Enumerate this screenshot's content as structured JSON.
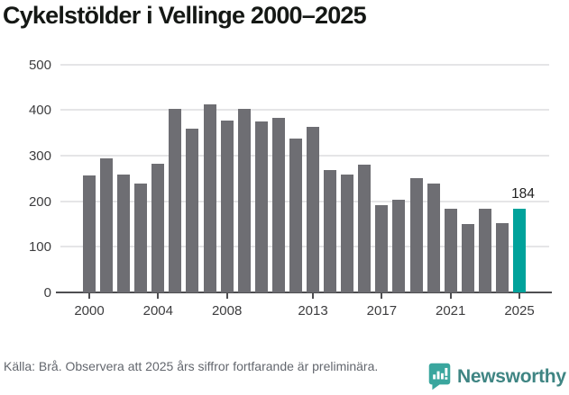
{
  "title": "Cykelstölder i Vellinge 2000–2025",
  "chart_data": {
    "type": "bar",
    "x": [
      2000,
      2001,
      2002,
      2003,
      2004,
      2005,
      2006,
      2007,
      2008,
      2009,
      2010,
      2011,
      2012,
      2013,
      2014,
      2015,
      2016,
      2017,
      2018,
      2019,
      2020,
      2021,
      2022,
      2023,
      2024,
      2025
    ],
    "values": [
      257,
      293,
      258,
      238,
      282,
      403,
      359,
      412,
      376,
      402,
      375,
      383,
      337,
      362,
      268,
      259,
      281,
      192,
      204,
      251,
      239,
      183,
      149,
      183,
      152,
      184
    ],
    "title": "Cykelstölder i Vellinge 2000–2025",
    "xlabel": "",
    "ylabel": "",
    "ylim": [
      0,
      500
    ],
    "yticks": [
      0,
      100,
      200,
      300,
      400,
      500
    ],
    "xticks": [
      2000,
      2004,
      2008,
      2013,
      2017,
      2021,
      2025
    ],
    "grid": true,
    "legend": "none",
    "bar_color": "#6e6e73",
    "highlight_index": 25,
    "highlight_color": "#00a29b",
    "highlight_label": "184"
  },
  "footer": {
    "source_note": "Källa: Brå. Observera att 2025 års siffror fortfarande är preliminära."
  },
  "logo": {
    "text": "Newsworthy",
    "icon": "newsworthy-chart-bubble-icon",
    "icon_color": "#3aa69e",
    "text_color": "#3f8583"
  }
}
